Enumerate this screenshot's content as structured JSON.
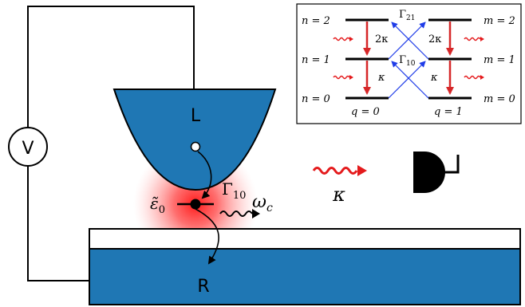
{
  "leads": {
    "left_label": "L",
    "right_label": "R"
  },
  "source": {
    "voltage_label": "V"
  },
  "dot": {
    "level_label": "ε̃",
    "level_sub": "0",
    "tunneling_label": "Γ",
    "tunneling_sub": "10",
    "photon_label": "ω",
    "photon_sub": "c"
  },
  "emission": {
    "decay_label": "κ"
  },
  "inset": {
    "left_levels": [
      "n = 2",
      "n = 1",
      "n = 0"
    ],
    "right_levels": [
      "m = 2",
      "m = 1",
      "m = 0"
    ],
    "charge_labels": [
      "q = 0",
      "q = 1"
    ],
    "left_rates": [
      "2κ",
      "κ"
    ],
    "right_rates": [
      "2κ",
      "κ"
    ],
    "cross_rates": [
      {
        "symbol": "Γ",
        "sub": "21"
      },
      {
        "symbol": "Γ",
        "sub": "10"
      }
    ]
  },
  "colors": {
    "lead_blue": "#1f77b4",
    "photon_red": "#e41a1c",
    "arrow_red": "#d62728",
    "inset_blue": "#1f3ce8"
  }
}
